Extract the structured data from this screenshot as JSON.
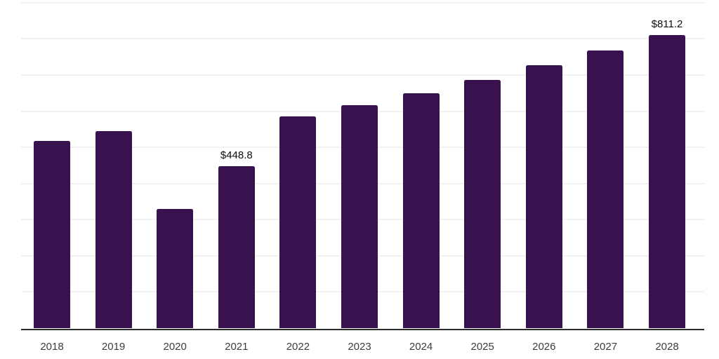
{
  "chart_data": {
    "type": "bar",
    "categories": [
      "2018",
      "2019",
      "2020",
      "2021",
      "2022",
      "2023",
      "2024",
      "2025",
      "2026",
      "2027",
      "2028"
    ],
    "values": [
      518.3,
      544.1,
      330.2,
      448.8,
      586.2,
      615.9,
      649.4,
      687.0,
      727.8,
      767.7,
      811.2
    ],
    "data_labels": [
      {
        "category": "2021",
        "text": "$448.8"
      },
      {
        "category": "2028",
        "text": "$811.2"
      }
    ],
    "title": "",
    "xlabel": "",
    "ylabel": "",
    "ylim": [
      0,
      900
    ],
    "gridlines": {
      "show": true,
      "interval": 100
    },
    "legend": {
      "show": false
    },
    "value_prefix": "$",
    "colors": {
      "bar": "#38124e",
      "gridline": "#f2f1f4",
      "axis_line": "#2b2b2b",
      "tick_label": "#3d3d3d",
      "value_label": "#0d0d0d",
      "background": "#ffffff"
    }
  }
}
